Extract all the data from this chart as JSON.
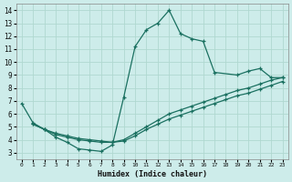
{
  "xlabel": "Humidex (Indice chaleur)",
  "bg_color": "#cdecea",
  "grid_color": "#b0d8d0",
  "line_color": "#1a7060",
  "xlim": [
    -0.5,
    23.5
  ],
  "ylim": [
    2.5,
    14.5
  ],
  "xticks": [
    0,
    1,
    2,
    3,
    4,
    5,
    6,
    7,
    8,
    9,
    10,
    11,
    12,
    13,
    14,
    15,
    16,
    17,
    18,
    19,
    20,
    21,
    22,
    23
  ],
  "yticks": [
    3,
    4,
    5,
    6,
    7,
    8,
    9,
    10,
    11,
    12,
    13,
    14
  ],
  "curve_main_x": [
    0,
    1,
    2,
    3,
    4,
    5,
    6,
    7,
    8,
    9,
    10,
    11,
    12,
    13,
    14,
    15,
    16,
    17,
    19,
    20,
    21,
    22,
    23
  ],
  "curve_main_y": [
    6.8,
    5.3,
    4.8,
    4.2,
    3.8,
    3.3,
    3.2,
    3.1,
    3.6,
    7.3,
    11.2,
    12.5,
    13.0,
    14.0,
    12.2,
    11.8,
    11.6,
    9.2,
    9.0,
    9.3,
    9.5,
    8.8,
    8.8
  ],
  "curve_line1_x": [
    1,
    2,
    3,
    4,
    5,
    6,
    7,
    8,
    9,
    10,
    11,
    12,
    13,
    14,
    15,
    16,
    17,
    18,
    19,
    20,
    21,
    22,
    23
  ],
  "curve_line1_y": [
    5.2,
    4.8,
    4.5,
    4.3,
    4.1,
    4.0,
    3.9,
    3.8,
    4.0,
    4.5,
    5.0,
    5.5,
    6.0,
    6.3,
    6.6,
    6.9,
    7.2,
    7.5,
    7.8,
    8.0,
    8.3,
    8.6,
    8.8
  ],
  "curve_line2_x": [
    1,
    2,
    3,
    4,
    5,
    6,
    7,
    8,
    9,
    10,
    11,
    12,
    13,
    14,
    15,
    16,
    17,
    18,
    19,
    20,
    21,
    22,
    23
  ],
  "curve_line2_y": [
    5.2,
    4.8,
    4.4,
    4.2,
    4.0,
    3.9,
    3.8,
    3.8,
    3.9,
    4.3,
    4.8,
    5.2,
    5.6,
    5.9,
    6.2,
    6.5,
    6.8,
    7.1,
    7.4,
    7.6,
    7.9,
    8.2,
    8.5
  ]
}
